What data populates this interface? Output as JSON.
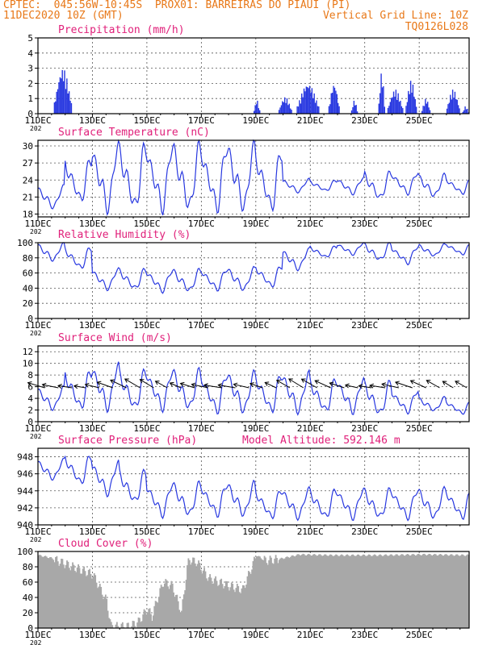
{
  "header": {
    "line1_left": "CPTEC:  045:56W-10:45S  PROX01: BARREIRAS DO PIAUI (PI)",
    "line2_left": "11DEC2020 10Z (GMT)",
    "line2_right": "Vertical Grid Line: 10Z",
    "line3_right": "TQ0126L028",
    "color": "#e87818"
  },
  "x_axis": {
    "labels": [
      "11DEC",
      "13DEC",
      "15DEC",
      "17DEC",
      "19DEC",
      "21DEC",
      "23DEC",
      "25DEC"
    ],
    "year_stub": "202",
    "range_hours": [
      0,
      380
    ]
  },
  "colors": {
    "title": "#e0207a",
    "line": "#2838e0",
    "bar": "#2838e0",
    "cloud": "#a8a8a8",
    "frame": "#000000"
  },
  "chart_data": [
    {
      "type": "bar",
      "title": "Precipitation (mm/h)",
      "ylim": [
        0,
        5
      ],
      "yticks": [
        "0",
        "1",
        "2",
        "3",
        "4",
        "5"
      ],
      "x_hours_step": 1,
      "events": [
        {
          "start": 14,
          "end": 30,
          "peak": 3.0
        },
        {
          "start": 190,
          "end": 196,
          "peak": 0.9
        },
        {
          "start": 212,
          "end": 224,
          "peak": 1.1
        },
        {
          "start": 228,
          "end": 248,
          "peak": 2.0
        },
        {
          "start": 256,
          "end": 266,
          "peak": 2.0
        },
        {
          "start": 276,
          "end": 282,
          "peak": 0.9
        },
        {
          "start": 300,
          "end": 306,
          "peak": 2.8
        },
        {
          "start": 308,
          "end": 322,
          "peak": 1.6
        },
        {
          "start": 324,
          "end": 334,
          "peak": 2.2
        },
        {
          "start": 338,
          "end": 346,
          "peak": 1.0
        },
        {
          "start": 360,
          "end": 372,
          "peak": 1.6
        },
        {
          "start": 374,
          "end": 380,
          "peak": 0.5
        }
      ]
    },
    {
      "type": "line",
      "title": "Surface Temperature (nC)",
      "ylim": [
        17.5,
        31
      ],
      "yticks": [
        "18",
        "21",
        "24",
        "27",
        "30"
      ],
      "base_mean": [
        21,
        24,
        24.5,
        24.5,
        24.5,
        24.5,
        24.5,
        24.5,
        24,
        23,
        23,
        23,
        23,
        23.5,
        23,
        23
      ],
      "base_amp": [
        2,
        4,
        6,
        6,
        6,
        6,
        6,
        6,
        5.5,
        1.2,
        1,
        1.5,
        2.5,
        2,
        2,
        1.5
      ]
    },
    {
      "type": "line",
      "title": "Relative Humidity (%)",
      "ylim": [
        0,
        100
      ],
      "yticks": [
        "0",
        "20",
        "40",
        "60",
        "80",
        "100"
      ],
      "base_mean": [
        88,
        80,
        52,
        52,
        50,
        50,
        52,
        52,
        56,
        78,
        88,
        92,
        88,
        84,
        90,
        92
      ],
      "base_amp": [
        12,
        15,
        14,
        14,
        15,
        15,
        15,
        15,
        15,
        14,
        8,
        8,
        12,
        12,
        8,
        8
      ]
    },
    {
      "type": "line",
      "title": "Surface Wind (m/s)",
      "ylim": [
        0,
        13
      ],
      "yticks": [
        "0",
        "2",
        "4",
        "6",
        "8",
        "10",
        "12"
      ],
      "base_mean": [
        4,
        5.5,
        6,
        5.5,
        5.5,
        5.5,
        5,
        5,
        5,
        5,
        4.5,
        4.5,
        4,
        3.5,
        3,
        2.5
      ],
      "base_amp": [
        2,
        3.5,
        4,
        3.5,
        3.5,
        3.5,
        3.5,
        3.5,
        3.5,
        3.5,
        3,
        3,
        3,
        2,
        1.2,
        1.2
      ],
      "arrow_hours": [
        6,
        18,
        30,
        42,
        54,
        66,
        78,
        90,
        102,
        114,
        126,
        138,
        150,
        162,
        174,
        186,
        198,
        210,
        222,
        234,
        246,
        258,
        270,
        282,
        294,
        306,
        318,
        330,
        342,
        354,
        366,
        378
      ]
    },
    {
      "type": "line",
      "title": "Surface Pressure (hPa)",
      "subtitle": "Model Altitude: 592.146  m",
      "ylim": [
        940,
        949
      ],
      "yticks": [
        "940",
        "942",
        "944",
        "946",
        "948"
      ],
      "base_mean": [
        946.5,
        946.5,
        945.5,
        944.5,
        943,
        943,
        943,
        943,
        942.5,
        942.5,
        942.5,
        942.5,
        942.5,
        942.5,
        942.5,
        942.5
      ],
      "base_amp": [
        1.2,
        1.8,
        2,
        2,
        2,
        2,
        2,
        2,
        1.8,
        1.8,
        1.8,
        1.8,
        1.8,
        1.8,
        1.8,
        1.8
      ]
    },
    {
      "type": "area",
      "title": "Cloud Cover (%)",
      "ylim": [
        0,
        100
      ],
      "yticks": [
        "0",
        "20",
        "40",
        "60",
        "80",
        "100"
      ],
      "x_hours_step": 1,
      "profile_hours": [
        0,
        10,
        30,
        48,
        60,
        64,
        70,
        80,
        88,
        96,
        100,
        104,
        110,
        118,
        126,
        132,
        140,
        150,
        168,
        180,
        192,
        200,
        212,
        230,
        260,
        300,
        340,
        380
      ],
      "profile_values": [
        95,
        92,
        80,
        70,
        35,
        2,
        2,
        2,
        8,
        25,
        15,
        35,
        60,
        55,
        20,
        90,
        85,
        65,
        55,
        50,
        95,
        88,
        90,
        96,
        95,
        95,
        96,
        95
      ]
    }
  ]
}
